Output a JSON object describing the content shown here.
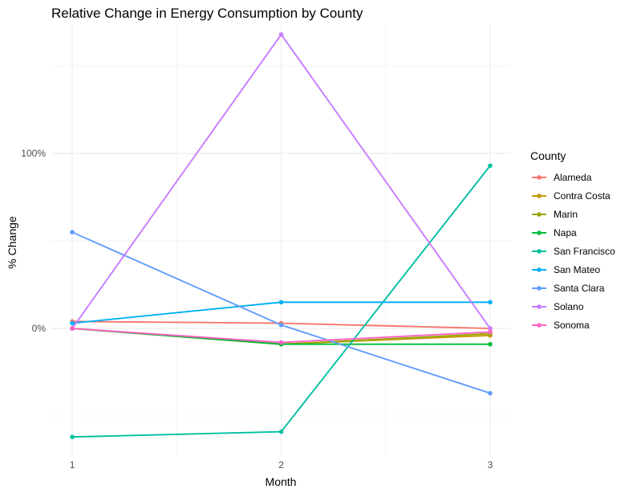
{
  "chart_data": {
    "type": "line",
    "title": "Relative Change in Energy Consumption by County",
    "xlabel": "Month",
    "ylabel": "% Change",
    "x": [
      1,
      2,
      3
    ],
    "x_ticks": [
      "1",
      "2",
      "3"
    ],
    "y_ticks": [
      {
        "value": 0,
        "label": "0%"
      },
      {
        "value": 100,
        "label": "100%"
      }
    ],
    "xlim": [
      0.9,
      3.1
    ],
    "ylim": [
      -72,
      173
    ],
    "grid": true,
    "legend": {
      "title": "County",
      "position": "right"
    },
    "series": [
      {
        "name": "Alameda",
        "color": "#F8766D",
        "values": [
          4,
          3,
          0
        ]
      },
      {
        "name": "Contra Costa",
        "color": "#C49A00",
        "values": [
          0,
          -9,
          -4
        ]
      },
      {
        "name": "Marin",
        "color": "#99A800",
        "values": [
          0,
          -9,
          -3
        ]
      },
      {
        "name": "Napa",
        "color": "#00BA38",
        "values": [
          0,
          -9,
          -9
        ]
      },
      {
        "name": "San Francisco",
        "color": "#00BFA0",
        "values": [
          -62,
          -59,
          93
        ]
      },
      {
        "name": "San Mateo",
        "color": "#00B0F6",
        "values": [
          3,
          15,
          15
        ]
      },
      {
        "name": "Santa Clara",
        "color": "#619CFF",
        "values": [
          55,
          2,
          -37
        ]
      },
      {
        "name": "Solano",
        "color": "#C77CFF",
        "values": [
          0,
          168,
          0
        ]
      },
      {
        "name": "Sonoma",
        "color": "#FF61C3",
        "values": [
          0,
          -8,
          -2
        ]
      }
    ]
  }
}
